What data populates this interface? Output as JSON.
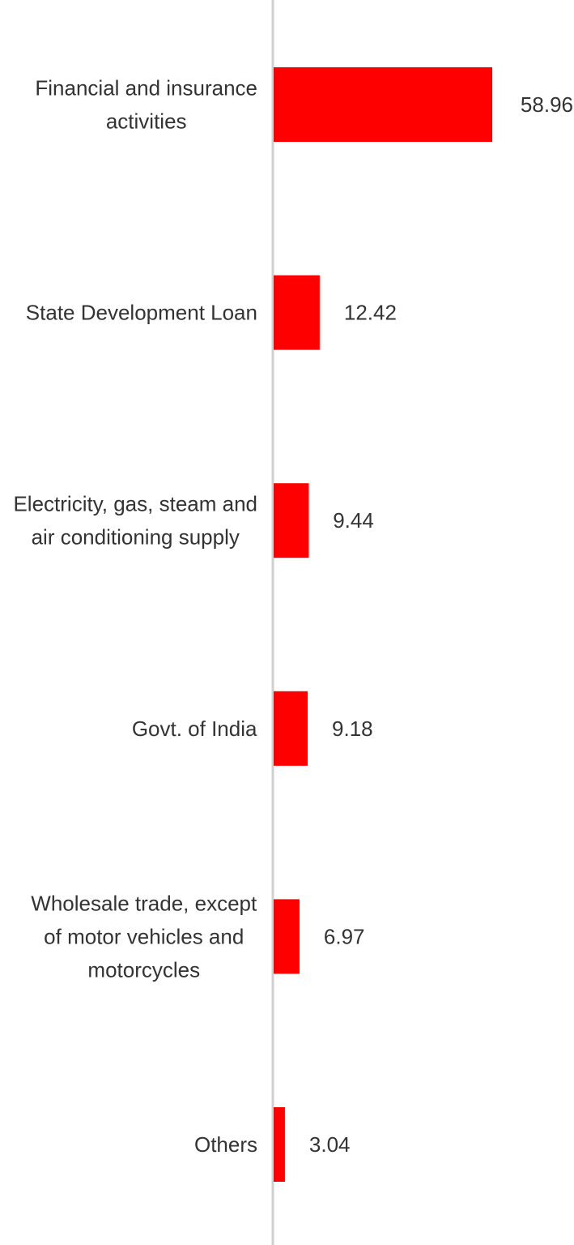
{
  "chart_data": {
    "type": "bar",
    "orientation": "horizontal",
    "categories": [
      [
        "Financial and insurance",
        "activities"
      ],
      [
        "State Development Loan"
      ],
      [
        "Electricity, gas, steam and",
        "air conditioning supply"
      ],
      [
        "Govt. of India"
      ],
      [
        "Wholesale trade, except",
        "of motor vehicles and",
        "motorcycles"
      ],
      [
        "Others"
      ]
    ],
    "values": [
      58.96,
      12.42,
      9.44,
      9.18,
      6.97,
      3.04
    ],
    "value_labels": [
      "58.96",
      "12.42",
      "9.44",
      "9.18",
      "6.97",
      "3.04"
    ],
    "bar_color": "#ff0000",
    "axis_color": "#d0d0d0",
    "xlim": [
      0,
      58.96
    ],
    "grid": false,
    "legend": "none"
  }
}
